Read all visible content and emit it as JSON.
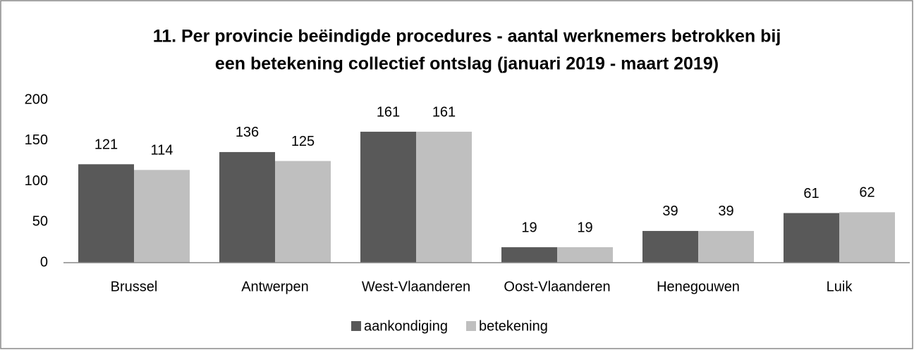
{
  "chart_data": {
    "type": "bar",
    "title": [
      "11. Per provincie beëindigde procedures - aantal werknemers betrokken bij",
      "een betekening collectief ontslag (januari 2019 - maart 2019)"
    ],
    "categories": [
      "Brussel",
      "Antwerpen",
      "West-Vlaanderen",
      "Oost-Vlaanderen",
      "Henegouwen",
      "Luik"
    ],
    "series": [
      {
        "name": "aankondiging",
        "color": "#595959",
        "values": [
          121,
          136,
          161,
          19,
          39,
          61
        ]
      },
      {
        "name": "betekening",
        "color": "#bfbfbf",
        "values": [
          114,
          125,
          161,
          19,
          39,
          62
        ]
      }
    ],
    "ylim": [
      0,
      200
    ],
    "yticks": [
      0,
      50,
      100,
      150,
      200
    ],
    "grid": false,
    "legend": "bottom"
  }
}
